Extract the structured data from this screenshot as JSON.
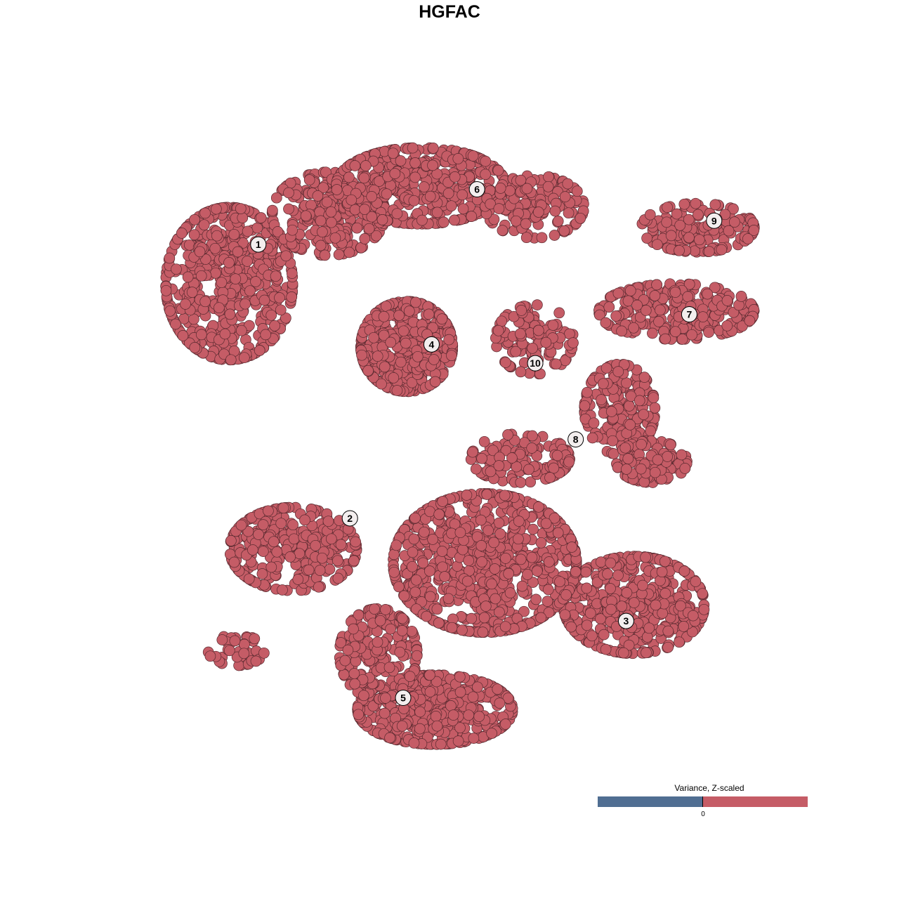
{
  "chart_data": {
    "type": "scatter",
    "title": "HGFAC",
    "xlabel": "",
    "ylabel": "",
    "grid": false,
    "axes_visible": false,
    "xlim": [
      -46,
      46
    ],
    "ylim": [
      -45,
      46
    ],
    "point_color": "#c55c66",
    "point_stroke": "#5a2a30",
    "cluster_blobs": [
      {
        "cluster": "1",
        "center": [
          -33.5,
          24
        ],
        "spread": [
          9,
          11
        ],
        "n": 520
      },
      {
        "cluster": "1",
        "center": [
          -19.5,
          34
        ],
        "spread": [
          8,
          6
        ],
        "n": 240
      },
      {
        "cluster": "6",
        "center": [
          -6.5,
          38
        ],
        "spread": [
          12,
          5.5
        ],
        "n": 420
      },
      {
        "cluster": "6",
        "center": [
          9.5,
          35
        ],
        "spread": [
          7,
          4.5
        ],
        "n": 150
      },
      {
        "cluster": "4",
        "center": [
          -8.5,
          15
        ],
        "spread": [
          6.5,
          6.5
        ],
        "n": 400
      },
      {
        "cluster": "10",
        "center": [
          9.5,
          16
        ],
        "spread": [
          5.5,
          5
        ],
        "n": 110
      },
      {
        "cluster": "9",
        "center": [
          32.5,
          32
        ],
        "spread": [
          8,
          3.5
        ],
        "n": 150
      },
      {
        "cluster": "7",
        "center": [
          29.5,
          20
        ],
        "spread": [
          11,
          4
        ],
        "n": 250
      },
      {
        "cluster": "8",
        "center": [
          21.5,
          6
        ],
        "spread": [
          5,
          6.5
        ],
        "n": 180
      },
      {
        "cluster": "8",
        "center": [
          26,
          -1.5
        ],
        "spread": [
          5,
          3
        ],
        "n": 110
      },
      {
        "cluster": "8",
        "center": [
          7.5,
          -1
        ],
        "spread": [
          7,
          3.5
        ],
        "n": 120
      },
      {
        "cluster": "2",
        "center": [
          -24.5,
          -14
        ],
        "spread": [
          9,
          6
        ],
        "n": 300
      },
      {
        "cluster": "2",
        "center": [
          -32.5,
          -28.5
        ],
        "spread": [
          4,
          2.2
        ],
        "n": 40
      },
      {
        "cluster": "3",
        "center": [
          23.5,
          -22
        ],
        "spread": [
          10,
          7
        ],
        "n": 450
      },
      {
        "cluster": "5",
        "center": [
          2.5,
          -16
        ],
        "spread": [
          13,
          10
        ],
        "n": 700
      },
      {
        "cluster": "5",
        "center": [
          -4.5,
          -37
        ],
        "spread": [
          11,
          5
        ],
        "n": 450
      },
      {
        "cluster": "5",
        "center": [
          -12.5,
          -29
        ],
        "spread": [
          5.5,
          6.5
        ],
        "n": 200
      }
    ],
    "cluster_labels": [
      {
        "label": "1",
        "x": -29.4,
        "y": 29.6
      },
      {
        "label": "6",
        "x": 1.4,
        "y": 37.5
      },
      {
        "label": "9",
        "x": 34.8,
        "y": 33.0
      },
      {
        "label": "7",
        "x": 31.3,
        "y": 19.6
      },
      {
        "label": "4",
        "x": -5.0,
        "y": 15.3
      },
      {
        "label": "10",
        "x": 9.6,
        "y": 12.6
      },
      {
        "label": "8",
        "x": 15.3,
        "y": 1.7
      },
      {
        "label": "2",
        "x": -16.5,
        "y": -9.6
      },
      {
        "label": "3",
        "x": 22.4,
        "y": -24.3
      },
      {
        "label": "5",
        "x": -9.0,
        "y": -35.3
      }
    ],
    "legend": {
      "title": "Variance, Z-scaled",
      "tick_label": "0",
      "low_color": "#506e92",
      "high_color": "#c55c66",
      "placement": "bottom-right"
    }
  }
}
